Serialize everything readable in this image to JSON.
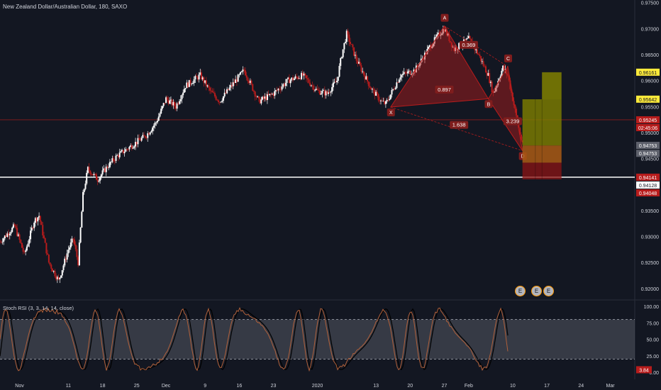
{
  "header": {
    "title": "New Zealand Dollar/Australian Dollar, 180, SAXO",
    "rsi_label": "Stoch RSI (3, 3, 14, 14, close)"
  },
  "events": {
    "icon1": "E",
    "icon2": "E",
    "icon3": "E"
  },
  "chart_data": {
    "type": "candlestick",
    "symbol": "NZDAUD",
    "timeframe": "180",
    "price_axis": {
      "range": [
        0.9182,
        0.9755
      ],
      "ticks": [
        0.975,
        0.97,
        0.965,
        0.96,
        0.955,
        0.95,
        0.945,
        0.94,
        0.935,
        0.93,
        0.925,
        0.92
      ],
      "tick_labels": [
        "0.97500",
        "0.97000",
        "0.96500",
        "0.96000",
        "0.95500",
        "0.95000",
        "0.94500",
        "0.94000",
        "0.93500",
        "0.93000",
        "0.92500",
        "0.92000"
      ]
    },
    "time_axis": {
      "labels": [
        {
          "label": "Nov",
          "date": "2019-11-01"
        },
        {
          "label": "11",
          "date": "2019-11-11"
        },
        {
          "label": "18",
          "date": "2019-11-18"
        },
        {
          "label": "25",
          "date": "2019-11-25"
        },
        {
          "label": "Dec",
          "date": "2019-12-01"
        },
        {
          "label": "9",
          "date": "2019-12-09"
        },
        {
          "label": "16",
          "date": "2019-12-16"
        },
        {
          "label": "23",
          "date": "2019-12-23"
        },
        {
          "label": "2020",
          "date": "2020-01-01"
        },
        {
          "label": "13",
          "date": "2020-01-13"
        },
        {
          "label": "20",
          "date": "2020-01-20"
        },
        {
          "label": "27",
          "date": "2020-01-27"
        },
        {
          "label": "Feb",
          "date": "2020-02-01"
        },
        {
          "label": "10",
          "date": "2020-02-10"
        },
        {
          "label": "17",
          "date": "2020-02-17"
        },
        {
          "label": "24",
          "date": "2020-02-24"
        },
        {
          "label": "Mar",
          "date": "2020-03-01"
        }
      ],
      "range": [
        "2019-10-28",
        "2020-03-06"
      ]
    },
    "price_path": [
      [
        "2019-10-28",
        0.929
      ],
      [
        "2019-10-31",
        0.932
      ],
      [
        "2019-11-02",
        0.9265
      ],
      [
        "2019-11-04",
        0.933
      ],
      [
        "2019-11-05",
        0.934
      ],
      [
        "2019-11-07",
        0.925
      ],
      [
        "2019-11-09",
        0.9215
      ],
      [
        "2019-11-11",
        0.9275
      ],
      [
        "2019-11-12",
        0.9295
      ],
      [
        "2019-11-13",
        0.925
      ],
      [
        "2019-11-14",
        0.938
      ],
      [
        "2019-11-15",
        0.943
      ],
      [
        "2019-11-17",
        0.941
      ],
      [
        "2019-11-19",
        0.9435
      ],
      [
        "2019-11-21",
        0.9455
      ],
      [
        "2019-11-24",
        0.9475
      ],
      [
        "2019-11-27",
        0.9495
      ],
      [
        "2019-11-29",
        0.952
      ],
      [
        "2019-12-01",
        0.9565
      ],
      [
        "2019-12-03",
        0.955
      ],
      [
        "2019-12-05",
        0.959
      ],
      [
        "2019-12-08",
        0.961
      ],
      [
        "2019-12-10",
        0.958
      ],
      [
        "2019-12-12",
        0.956
      ],
      [
        "2019-12-14",
        0.9585
      ],
      [
        "2019-12-17",
        0.962
      ],
      [
        "2019-12-20",
        0.956
      ],
      [
        "2019-12-23",
        0.9575
      ],
      [
        "2019-12-26",
        0.96
      ],
      [
        "2019-12-29",
        0.961
      ],
      [
        "2020-01-01",
        0.958
      ],
      [
        "2020-01-03",
        0.9575
      ],
      [
        "2020-01-05",
        0.96
      ],
      [
        "2020-01-06",
        0.965
      ],
      [
        "2020-01-07",
        0.969
      ],
      [
        "2020-01-09",
        0.964
      ],
      [
        "2020-01-12",
        0.9585
      ],
      [
        "2020-01-14",
        0.956
      ],
      [
        "2020-01-15",
        0.9555
      ],
      [
        "2020-01-18",
        0.961
      ],
      [
        "2020-01-21",
        0.962
      ],
      [
        "2020-01-24",
        0.9665
      ],
      [
        "2020-01-26",
        0.969
      ],
      [
        "2020-01-27",
        0.97
      ],
      [
        "2020-01-29",
        0.966
      ],
      [
        "2020-02-01",
        0.968
      ],
      [
        "2020-02-03",
        0.965
      ],
      [
        "2020-02-05",
        0.961
      ],
      [
        "2020-02-06",
        0.9575
      ],
      [
        "2020-02-08",
        0.9625
      ],
      [
        "2020-02-09",
        0.961
      ],
      [
        "2020-02-10",
        0.9565
      ],
      [
        "2020-02-12",
        0.9475
      ]
    ],
    "harmonic_pattern": {
      "points": [
        {
          "label": "X",
          "date": "2020-01-16",
          "price": 0.9549
        },
        {
          "label": "A",
          "date": "2020-01-27",
          "price": 0.9705
        },
        {
          "label": "B",
          "date": "2020-02-05",
          "price": 0.9565
        },
        {
          "label": "C",
          "date": "2020-02-09",
          "price": 0.9627
        },
        {
          "label": "D",
          "date": "2020-02-12",
          "price": 0.9465
        }
      ],
      "ratios": [
        {
          "label": "0.369",
          "date": "2020-02-01",
          "price": 0.9668
        },
        {
          "label": "0.897",
          "date": "2020-01-27",
          "price": 0.9582
        },
        {
          "label": "1.638",
          "date": "2020-01-30",
          "price": 0.9514
        },
        {
          "label": "3.239",
          "date": "2020-02-10",
          "price": 0.9521
        }
      ]
    },
    "prz_zone": {
      "start": "2020-02-12",
      "end": "2020-02-20",
      "target1": [
        0.9564,
        0.9616
      ],
      "target2": [
        0.9475,
        0.9564
      ],
      "entry": [
        0.9442,
        0.9475
      ],
      "stop": [
        0.941,
        0.9442
      ]
    },
    "levels": [
      {
        "price": 0.95245,
        "color": "#8b1c1c",
        "style": "line"
      },
      {
        "price": 0.94141,
        "color": "#ffffff",
        "style": "line"
      }
    ],
    "price_labels": [
      {
        "text": "0.96161",
        "price": 0.96161,
        "bg": "#ffeb3b",
        "fg": "#131722"
      },
      {
        "text": "0.95642",
        "price": 0.95642,
        "bg": "#ffeb3b",
        "fg": "#131722"
      },
      {
        "text": "0.95245",
        "price": 0.95245,
        "bg": "#b71c1c",
        "fg": "#ffffff"
      },
      {
        "text": "02:45:06",
        "price": 0.95095,
        "bg": "#b71c1c",
        "fg": "#ffffff"
      },
      {
        "text": "0.94753",
        "price": 0.94753,
        "bg": "#5d606b",
        "fg": "#ffffff"
      },
      {
        "text": "0.94753",
        "price": 0.946,
        "bg": "#5d606b",
        "fg": "#ffffff"
      },
      {
        "text": "0.94141",
        "price": 0.94141,
        "bg": "#b71c1c",
        "fg": "#ffffff"
      },
      {
        "text": "0.94128",
        "price": 0.9399,
        "bg": "#ffffff",
        "fg": "#131722"
      },
      {
        "text": "0.94048",
        "price": 0.9384,
        "bg": "#b71c1c",
        "fg": "#ffffff"
      }
    ],
    "stoch_rsi": {
      "axis_ticks": [
        "100.00",
        "75.00",
        "50.00",
        "25.00",
        "0.00"
      ],
      "tick_values": [
        100,
        75,
        50,
        25,
        0
      ],
      "band": [
        20,
        80
      ],
      "last_value": "3.84"
    }
  }
}
